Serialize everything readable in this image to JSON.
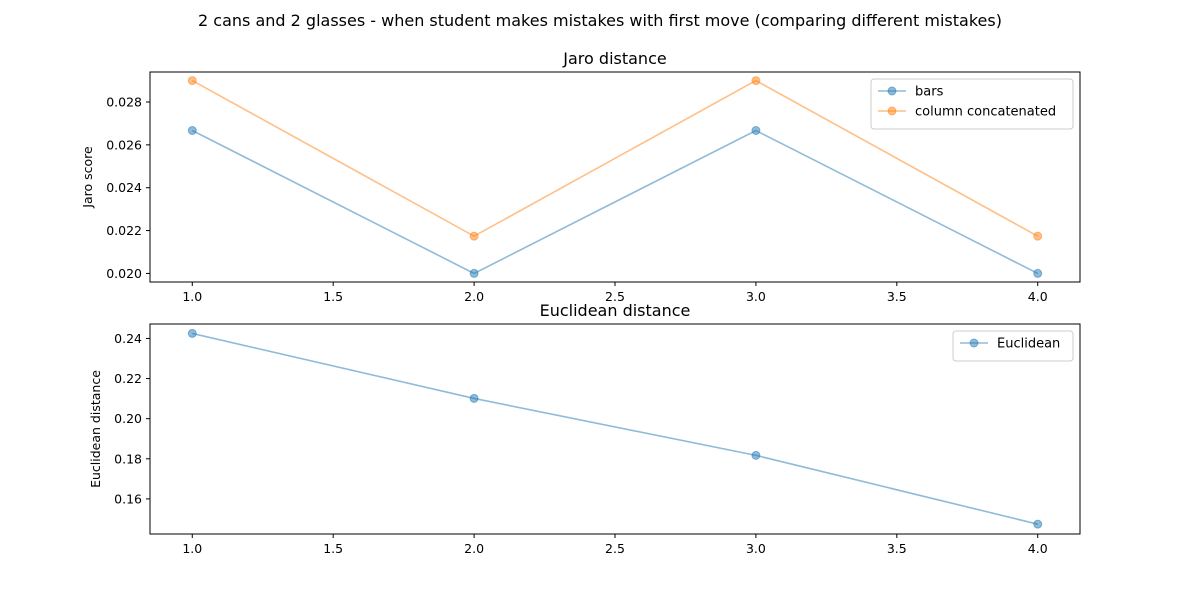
{
  "suptitle": "2 cans and 2 glasses - when student makes mistakes with first move (comparing different mistakes)",
  "chart_data": [
    {
      "type": "line",
      "title": "Jaro distance",
      "xlabel": "",
      "ylabel": "Jaro score",
      "xlim": [
        0.85,
        4.15
      ],
      "ylim": [
        0.0196,
        0.0294
      ],
      "xticks": [
        1.0,
        1.5,
        2.0,
        2.5,
        3.0,
        3.5,
        4.0
      ],
      "xtick_labels": [
        "1.0",
        "1.5",
        "2.0",
        "2.5",
        "3.0",
        "3.5",
        "4.0"
      ],
      "yticks": [
        0.02,
        0.022,
        0.024,
        0.026,
        0.028
      ],
      "ytick_labels": [
        "0.020",
        "0.022",
        "0.024",
        "0.026",
        "0.028"
      ],
      "grid": false,
      "legend_position": "top-right",
      "x": [
        1,
        2,
        3,
        4
      ],
      "series": [
        {
          "name": "bars",
          "values": [
            0.02667,
            0.02,
            0.02667,
            0.02
          ],
          "color": "#1f77b4"
        },
        {
          "name": "column concatenated",
          "values": [
            0.029,
            0.02174,
            0.029,
            0.02174
          ],
          "color": "#ff7f0e"
        }
      ]
    },
    {
      "type": "line",
      "title": "Euclidean distance",
      "xlabel": "",
      "ylabel": "Euclidean distance",
      "xlim": [
        0.85,
        4.15
      ],
      "ylim": [
        0.1425,
        0.2472
      ],
      "xticks": [
        1.0,
        1.5,
        2.0,
        2.5,
        3.0,
        3.5,
        4.0
      ],
      "xtick_labels": [
        "1.0",
        "1.5",
        "2.0",
        "2.5",
        "3.0",
        "3.5",
        "4.0"
      ],
      "yticks": [
        0.16,
        0.18,
        0.2,
        0.22,
        0.24
      ],
      "ytick_labels": [
        "0.16",
        "0.18",
        "0.20",
        "0.22",
        "0.24"
      ],
      "grid": false,
      "legend_position": "top-right",
      "x": [
        1,
        2,
        3,
        4
      ],
      "series": [
        {
          "name": "Euclidean",
          "values": [
            0.2425,
            0.2101,
            0.1817,
            0.1474
          ],
          "color": "#1f77b4"
        }
      ]
    }
  ]
}
